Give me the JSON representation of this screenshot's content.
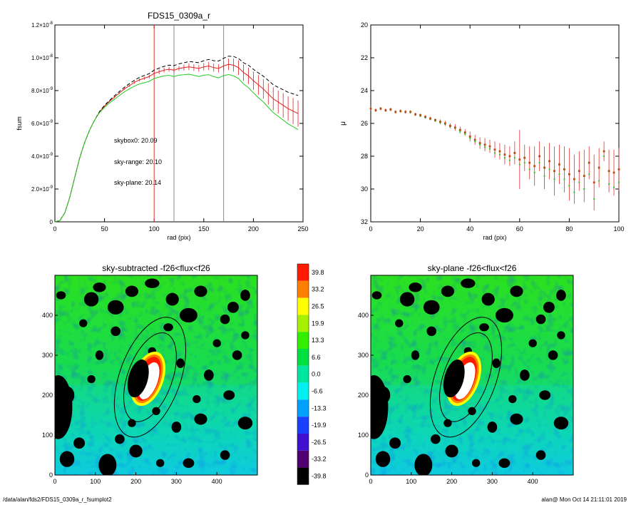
{
  "footer": {
    "path": "/data/alan/fds2/FDS15_0309a_r_fsumplot2",
    "user_time": "alan@  Mon Oct 14 21:11:01 2019"
  },
  "chart_data": [
    {
      "type": "line",
      "title": "FDS15_0309a_r",
      "xlabel": "rad (pix)",
      "ylabel": "fsum",
      "xlim": [
        0,
        250
      ],
      "ylim": [
        0,
        1.2e-08
      ],
      "xticks": [
        "0",
        "50",
        "100",
        "150",
        "200",
        "250"
      ],
      "yticks": [
        {
          "base": "0",
          "exp": ""
        },
        {
          "base": "2.0×10",
          "exp": "-9"
        },
        {
          "base": "4.0×10",
          "exp": "-9"
        },
        {
          "base": "6.0×10",
          "exp": "-9"
        },
        {
          "base": "8.0×10",
          "exp": "-9"
        },
        {
          "base": "1.0×10",
          "exp": "-8"
        },
        {
          "base": "1.2×10",
          "exp": "-8"
        }
      ],
      "vlines": [
        {
          "x": 100,
          "color": "#e83030"
        },
        {
          "x": 120,
          "color": "#888888"
        },
        {
          "x": 170,
          "color": "#888888"
        }
      ],
      "annotations": [
        {
          "text": "skybox0: 20.09",
          "color": "#000000"
        },
        {
          "text": "sky-range: 20.10",
          "color": "#e02020"
        },
        {
          "text": "sky-plane: 20.14",
          "color": "#22cc22"
        }
      ],
      "x": [
        0,
        5,
        10,
        15,
        20,
        25,
        30,
        35,
        40,
        45,
        50,
        55,
        60,
        65,
        70,
        75,
        80,
        85,
        90,
        95,
        100,
        105,
        110,
        115,
        120,
        125,
        130,
        135,
        140,
        145,
        150,
        155,
        160,
        165,
        170,
        175,
        180,
        185,
        190,
        195,
        200,
        205,
        210,
        215,
        220,
        225,
        230,
        235,
        240,
        245
      ],
      "series": [
        {
          "color": "#e02020",
          "values": [
            0,
            8e-11,
            5.5e-10,
            1.5e-09,
            2.7e-09,
            3.9e-09,
            4.85e-09,
            5.6e-09,
            6.2e-09,
            6.7e-09,
            7.05e-09,
            7.35e-09,
            7.6e-09,
            7.85e-09,
            8.1e-09,
            8.3e-09,
            8.5e-09,
            8.65e-09,
            8.75e-09,
            8.85e-09,
            9.05e-09,
            9.15e-09,
            9.25e-09,
            9.3e-09,
            9.25e-09,
            9.35e-09,
            9.4e-09,
            9.45e-09,
            9.4e-09,
            9.35e-09,
            9.45e-09,
            9.5e-09,
            9.4e-09,
            9.35e-09,
            9.5e-09,
            9.6e-09,
            9.55e-09,
            9.4e-09,
            9.1e-09,
            8.9e-09,
            8.6e-09,
            8.35e-09,
            8.1e-09,
            7.8e-09,
            7.5e-09,
            7.3e-09,
            7.1e-09,
            6.9e-09,
            6.75e-09,
            6.6e-09
          ],
          "err": [
            0,
            0,
            0,
            0,
            0,
            0,
            0,
            0,
            0,
            5e-11,
            5e-11,
            5e-11,
            5e-11,
            5e-11,
            6e-11,
            7e-11,
            8e-11,
            9e-11,
            1e-10,
            1.2e-10,
            1.5e-10,
            1.5e-10,
            1.5e-10,
            1.5e-10,
            1.5e-10,
            1.5e-10,
            1.8e-10,
            2e-10,
            2e-10,
            2e-10,
            2.2e-10,
            2.5e-10,
            2.5e-10,
            2.5e-10,
            3e-10,
            3.5e-10,
            4e-10,
            4.5e-10,
            5e-10,
            5e-10,
            5.5e-10,
            6e-10,
            6e-10,
            6.5e-10,
            7e-10,
            7e-10,
            7.5e-10,
            7.5e-10,
            8e-10,
            8e-10
          ]
        },
        {
          "color": "#000000",
          "dash": "5,3",
          "values": [
            0,
            8e-11,
            5.5e-10,
            1.5e-09,
            2.7e-09,
            3.9e-09,
            4.85e-09,
            5.6e-09,
            6.2e-09,
            6.72e-09,
            7.1e-09,
            7.4e-09,
            7.68e-09,
            7.95e-09,
            8.2e-09,
            8.42e-09,
            8.62e-09,
            8.8e-09,
            8.92e-09,
            9.03e-09,
            9.25e-09,
            9.37e-09,
            9.48e-09,
            9.55e-09,
            9.52e-09,
            9.63e-09,
            9.7e-09,
            9.77e-09,
            9.74e-09,
            9.7e-09,
            9.82e-09,
            9.9e-09,
            9.82e-09,
            9.8e-09,
            9.97e-09,
            1.01e-08,
            1.008e-08,
            9.96e-09,
            9.7e-09,
            9.55e-09,
            9.3e-09,
            9.08e-09,
            8.88e-09,
            8.62e-09,
            8.36e-09,
            8.2e-09,
            8.05e-09,
            7.9e-09,
            7.8e-09,
            7.7e-09
          ]
        },
        {
          "color": "#22cc22",
          "values": [
            0,
            8e-11,
            5.5e-10,
            1.5e-09,
            2.7e-09,
            3.9e-09,
            4.85e-09,
            5.6e-09,
            6.2e-09,
            6.66e-09,
            6.98e-09,
            7.25e-09,
            7.47e-09,
            7.7e-09,
            7.92e-09,
            8.1e-09,
            8.27e-09,
            8.4e-09,
            8.48e-09,
            8.56e-09,
            8.74e-09,
            8.82e-09,
            8.9e-09,
            8.93e-09,
            8.86e-09,
            8.94e-09,
            8.97e-09,
            9e-09,
            8.93e-09,
            8.86e-09,
            8.94e-09,
            8.97e-09,
            8.85e-09,
            8.78e-09,
            8.91e-09,
            8.98e-09,
            8.9e-09,
            8.73e-09,
            8.41e-09,
            8.18e-09,
            7.86e-09,
            7.58e-09,
            7.31e-09,
            6.98e-09,
            6.66e-09,
            6.43e-09,
            6.2e-09,
            5.97e-09,
            5.8e-09,
            5.62e-09
          ]
        }
      ]
    },
    {
      "type": "scatter",
      "title": "",
      "xlabel": "rad (pix)",
      "ylabel": "μ",
      "xlim": [
        0,
        100
      ],
      "ylim": [
        32,
        20
      ],
      "xticks": [
        "0",
        "20",
        "40",
        "60",
        "80",
        "100"
      ],
      "yticks": [
        "20",
        "22",
        "24",
        "26",
        "28",
        "30",
        "32"
      ],
      "x": [
        0,
        2,
        4,
        6,
        8,
        10,
        12,
        14,
        16,
        18,
        20,
        22,
        24,
        26,
        28,
        30,
        32,
        34,
        36,
        38,
        40,
        42,
        44,
        46,
        48,
        50,
        52,
        54,
        56,
        58,
        60,
        62,
        64,
        66,
        68,
        70,
        72,
        74,
        76,
        78,
        80,
        82,
        84,
        86,
        88,
        90,
        92,
        94,
        96,
        98,
        100
      ],
      "series": [
        {
          "color": "#b05010",
          "values": [
            25.1,
            25.2,
            25.1,
            25.2,
            25.15,
            25.3,
            25.25,
            25.3,
            25.3,
            25.45,
            25.5,
            25.6,
            25.7,
            25.8,
            25.9,
            26.0,
            26.15,
            26.25,
            26.4,
            26.55,
            26.8,
            27.0,
            27.2,
            27.3,
            27.4,
            27.6,
            27.7,
            27.9,
            28.0,
            27.8,
            28.2,
            28.1,
            28.4,
            28.6,
            28.0,
            28.7,
            28.3,
            28.9,
            28.5,
            28.8,
            29.1,
            29.4,
            28.9,
            29.2,
            28.4,
            29.6,
            28.7,
            27.7,
            28.9,
            29.0,
            28.8
          ],
          "err": [
            0.1,
            0.1,
            0.1,
            0.1,
            0.1,
            0.1,
            0.1,
            0.1,
            0.1,
            0.1,
            0.1,
            0.1,
            0.1,
            0.1,
            0.15,
            0.15,
            0.15,
            0.2,
            0.2,
            0.2,
            0.3,
            0.3,
            0.35,
            0.4,
            0.4,
            0.5,
            0.5,
            0.6,
            0.6,
            0.7,
            1.8,
            0.8,
            1.0,
            1.2,
            0.9,
            1.3,
            1.1,
            1.5,
            1.2,
            1.4,
            1.6,
            1.5,
            1.2,
            1.6,
            1.0,
            1.7,
            1.2,
            0.6,
            1.3,
            1.4,
            1.3
          ]
        },
        {
          "color": "#22cc22",
          "values": [
            25.1,
            25.2,
            25.1,
            25.2,
            25.15,
            25.3,
            25.25,
            25.3,
            25.3,
            25.45,
            25.55,
            25.65,
            25.75,
            25.85,
            25.95,
            26.05,
            26.2,
            26.3,
            26.5,
            26.65,
            26.9,
            27.1,
            27.3,
            27.45,
            27.55,
            27.8,
            27.9,
            28.1,
            28.25,
            28.1,
            28.5,
            28.4,
            28.8,
            29.0,
            28.4,
            29.2,
            28.8,
            29.4,
            29.1,
            29.4,
            29.8,
            30.2,
            29.6,
            30.0,
            29.1,
            30.6,
            29.5,
            28.0,
            29.7,
            29.9,
            29.6
          ]
        }
      ]
    },
    {
      "type": "heatmap",
      "title": "sky-subtracted -f26<flux<f26",
      "xlim": [
        0,
        500
      ],
      "ylim": [
        0,
        500
      ],
      "xticks": [
        "0",
        "100",
        "200",
        "300",
        "400"
      ],
      "yticks": [
        "0",
        "100",
        "200",
        "300",
        "400"
      ],
      "galaxy": {
        "x": 225,
        "y": 245
      },
      "ellipses": [
        {
          "a": 75,
          "b": 155,
          "angle": 20
        },
        {
          "a": 55,
          "b": 115,
          "angle": 20
        }
      ]
    },
    {
      "type": "heatmap",
      "title": "sky-plane -f26<flux<f26",
      "xlim": [
        0,
        500
      ],
      "ylim": [
        0,
        500
      ],
      "xticks": [
        "0",
        "100",
        "200",
        "300",
        "400"
      ],
      "yticks": [
        "0",
        "100",
        "200",
        "300",
        "400"
      ],
      "galaxy": {
        "x": 225,
        "y": 245
      },
      "ellipses": [
        {
          "a": 75,
          "b": 155,
          "angle": 20
        },
        {
          "a": 55,
          "b": 115,
          "angle": 20
        }
      ]
    }
  ],
  "colorbar": {
    "labels": [
      "39.8",
      "33.2",
      "26.5",
      "19.9",
      "13.3",
      "6.6",
      "0.0",
      "-6.6",
      "-13.3",
      "-19.9",
      "-26.5",
      "-33.2",
      "-39.8"
    ],
    "colors": [
      "#ff1a00",
      "#ff7f00",
      "#ffff00",
      "#a6f000",
      "#33ee00",
      "#00e040",
      "#00e6a0",
      "#00f0f0",
      "#00a0ff",
      "#1a40ff",
      "#4010d0",
      "#500070",
      "#000000"
    ]
  },
  "masks": [
    [
      8,
      170,
      35,
      80
    ],
    [
      30,
      200,
      18,
      22
    ],
    [
      130,
      25,
      22,
      28
    ],
    [
      30,
      40,
      18,
      20
    ],
    [
      60,
      80,
      14,
      14
    ],
    [
      440,
      420,
      14,
      14
    ],
    [
      470,
      130,
      18,
      16
    ],
    [
      90,
      440,
      18,
      18
    ],
    [
      110,
      470,
      16,
      12
    ],
    [
      150,
      420,
      20,
      18
    ],
    [
      190,
      460,
      16,
      14
    ],
    [
      240,
      480,
      18,
      12
    ],
    [
      290,
      440,
      16,
      16
    ],
    [
      330,
      400,
      22,
      18
    ],
    [
      360,
      460,
      16,
      14
    ],
    [
      420,
      390,
      12,
      12
    ],
    [
      450,
      300,
      12,
      12
    ],
    [
      400,
      330,
      10,
      10
    ],
    [
      380,
      250,
      12,
      14
    ],
    [
      430,
      200,
      14,
      12
    ],
    [
      360,
      140,
      16,
      14
    ],
    [
      300,
      120,
      12,
      14
    ],
    [
      250,
      160,
      10,
      10
    ],
    [
      200,
      60,
      16,
      16
    ],
    [
      160,
      90,
      12,
      12
    ],
    [
      330,
      30,
      14,
      12
    ],
    [
      420,
      50,
      12,
      12
    ],
    [
      260,
      30,
      10,
      10
    ],
    [
      110,
      300,
      10,
      12
    ],
    [
      150,
      360,
      12,
      12
    ],
    [
      90,
      240,
      10,
      10
    ],
    [
      350,
      190,
      10,
      10
    ],
    [
      280,
      370,
      12,
      10
    ],
    [
      240,
      310,
      10,
      10
    ],
    [
      310,
      280,
      10,
      12
    ],
    [
      470,
      450,
      12,
      14
    ],
    [
      15,
      450,
      12,
      10
    ],
    [
      70,
      380,
      10,
      10
    ],
    [
      190,
      130,
      10,
      10
    ],
    [
      470,
      350,
      10,
      10
    ]
  ]
}
